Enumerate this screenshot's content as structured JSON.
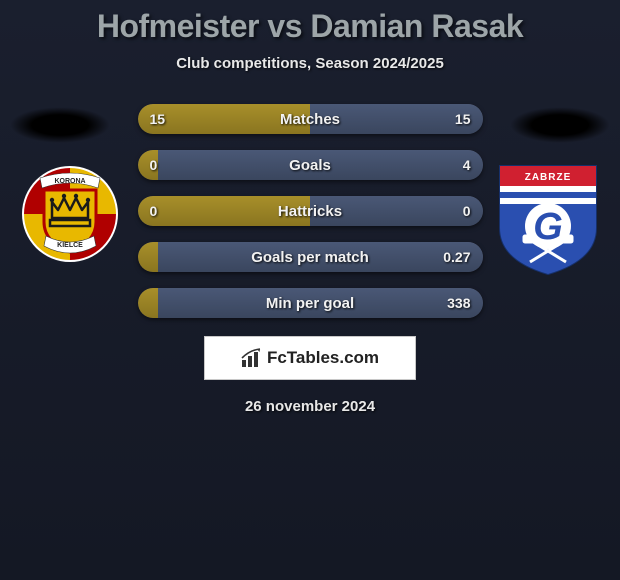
{
  "title": "Hofmeister vs Damian Rasak",
  "subtitle": "Club competitions, Season 2024/2025",
  "footer_brand": "FcTables.com",
  "footer_date": "26 november 2024",
  "colors": {
    "bar_left": "#a88f2a",
    "bar_right": "#4a5876",
    "bar_bg_dark": "#3a3f56",
    "title_color": "#9da5a8"
  },
  "player_left": {
    "club": "Korona Kielce",
    "badge": {
      "outer_bg": "#ffffff",
      "crest_fill": "#e8b800",
      "crest_stroke": "#b00000",
      "crown_stroke": "#1a1a1a",
      "banner_top": "KORONA",
      "banner_bottom": "KIELCE"
    }
  },
  "player_right": {
    "club": "Górnik Zabrze",
    "badge": {
      "top_fill": "#d02030",
      "bottom_fill": "#2a4fb0",
      "g_fill": "#ffffff",
      "stripe1": "#ffffff",
      "stripe2": "#2a4fb0",
      "hammer_fill": "#ffffff",
      "top_text": "ZABRZE"
    }
  },
  "stats": [
    {
      "label": "Matches",
      "left_val": "15",
      "right_val": "15",
      "left_pct": 50,
      "right_pct": 50
    },
    {
      "label": "Goals",
      "left_val": "0",
      "right_val": "4",
      "left_pct": 6,
      "right_pct": 94
    },
    {
      "label": "Hattricks",
      "left_val": "0",
      "right_val": "0",
      "left_pct": 50,
      "right_pct": 50
    },
    {
      "label": "Goals per match",
      "left_val": "",
      "right_val": "0.27",
      "left_pct": 6,
      "right_pct": 94
    },
    {
      "label": "Min per goal",
      "left_val": "",
      "right_val": "338",
      "left_pct": 6,
      "right_pct": 94
    }
  ]
}
